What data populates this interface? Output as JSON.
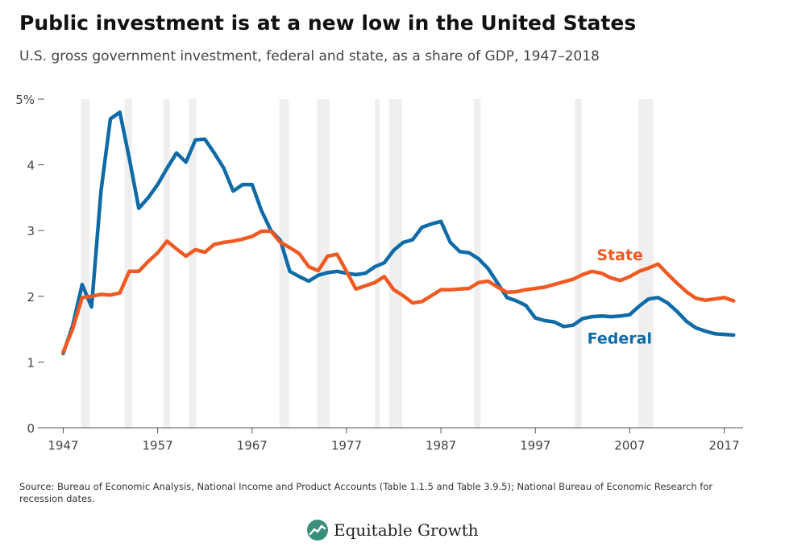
{
  "title": "Public investment is at a new low in the United States",
  "subtitle": "U.S. gross government investment, federal and state, as a share of GDP, 1947–2018",
  "source": "Source: Bureau of Economic Analysis, National Income and Product Accounts (Table 1.1.5 and Table 3.9.5); National Bureau of Economic Research for recession dates.",
  "brand": {
    "name": "Equitable Growth",
    "logo_icon": "chart-leaf-logo-icon"
  },
  "colors": {
    "federal": "#0e6ba8",
    "state": "#f05a22",
    "recession": "#efefef",
    "axis": "#555555",
    "grid": "#e6e6e6"
  },
  "chart_data": {
    "type": "line",
    "xlim": [
      1945,
      2019
    ],
    "ylim": [
      0,
      5
    ],
    "y_ticks": [
      0,
      1,
      2,
      3,
      4,
      5
    ],
    "y_tick_labels": [
      "0",
      "1",
      "2",
      "3",
      "4",
      "5%"
    ],
    "x_ticks": [
      1947,
      1957,
      1967,
      1977,
      1987,
      1997,
      2007,
      2017
    ],
    "x_tick_labels": [
      "1947",
      "1957",
      "1967",
      "1977",
      "1987",
      "1997",
      "2007",
      "2017"
    ],
    "recessions": [
      [
        1948.9,
        1949.8
      ],
      [
        1953.5,
        1954.3
      ],
      [
        1957.6,
        1958.3
      ],
      [
        1960.3,
        1961.1
      ],
      [
        1969.9,
        1970.9
      ],
      [
        1973.9,
        1975.2
      ],
      [
        1980.0,
        1980.5
      ],
      [
        1981.5,
        1982.9
      ],
      [
        1990.5,
        1991.2
      ],
      [
        2001.2,
        2001.9
      ],
      [
        2007.9,
        2009.5
      ]
    ],
    "x": [
      1947,
      1948,
      1949,
      1950,
      1951,
      1952,
      1953,
      1954,
      1955,
      1956,
      1957,
      1958,
      1959,
      1960,
      1961,
      1962,
      1963,
      1964,
      1965,
      1966,
      1967,
      1968,
      1969,
      1970,
      1971,
      1972,
      1973,
      1974,
      1975,
      1976,
      1977,
      1978,
      1979,
      1980,
      1981,
      1982,
      1983,
      1984,
      1985,
      1986,
      1987,
      1988,
      1989,
      1990,
      1991,
      1992,
      1993,
      1994,
      1995,
      1996,
      1997,
      1998,
      1999,
      2000,
      2001,
      2002,
      2003,
      2004,
      2005,
      2006,
      2007,
      2008,
      2009,
      2010,
      2011,
      2012,
      2013,
      2014,
      2015,
      2016,
      2017,
      2018
    ],
    "series": [
      {
        "name": "Federal",
        "values": [
          1.13,
          1.55,
          2.18,
          1.84,
          3.6,
          4.7,
          4.8,
          4.1,
          3.34,
          3.5,
          3.7,
          3.95,
          4.18,
          4.04,
          4.38,
          4.39,
          4.18,
          3.95,
          3.6,
          3.7,
          3.7,
          3.3,
          3.0,
          2.85,
          2.38,
          2.3,
          2.23,
          2.32,
          2.36,
          2.38,
          2.35,
          2.33,
          2.35,
          2.45,
          2.51,
          2.7,
          2.82,
          2.86,
          3.05,
          3.1,
          3.14,
          2.82,
          2.68,
          2.66,
          2.57,
          2.42,
          2.2,
          1.98,
          1.93,
          1.86,
          1.67,
          1.63,
          1.61,
          1.54,
          1.56,
          1.66,
          1.69,
          1.7,
          1.69,
          1.7,
          1.72,
          1.85,
          1.96,
          1.98,
          1.9,
          1.77,
          1.62,
          1.52,
          1.47,
          1.43,
          1.42,
          1.41
        ]
      },
      {
        "name": "State",
        "values": [
          1.15,
          1.5,
          1.98,
          2.0,
          2.03,
          2.02,
          2.05,
          2.38,
          2.38,
          2.53,
          2.66,
          2.84,
          2.72,
          2.61,
          2.71,
          2.67,
          2.79,
          2.82,
          2.84,
          2.87,
          2.91,
          2.99,
          2.99,
          2.82,
          2.74,
          2.65,
          2.45,
          2.39,
          2.61,
          2.64,
          2.38,
          2.11,
          2.16,
          2.21,
          2.3,
          2.1,
          2.01,
          1.9,
          1.92,
          2.01,
          2.1,
          2.1,
          2.11,
          2.12,
          2.21,
          2.23,
          2.14,
          2.06,
          2.07,
          2.1,
          2.12,
          2.14,
          2.18,
          2.22,
          2.26,
          2.33,
          2.38,
          2.35,
          2.28,
          2.24,
          2.3,
          2.38,
          2.43,
          2.49,
          2.34,
          2.2,
          2.07,
          1.97,
          1.94,
          1.96,
          1.98,
          1.93
        ]
      }
    ],
    "labels": {
      "federal": "Federal",
      "state": "State"
    },
    "grid": false
  }
}
